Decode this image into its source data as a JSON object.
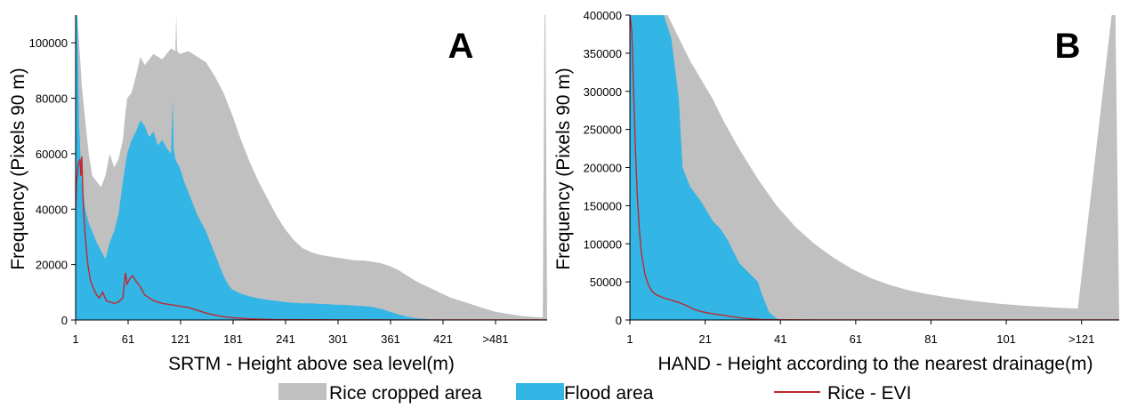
{
  "colors": {
    "rice_cropped": "#c0c0c0",
    "flood": "#33b5e5",
    "rice_evi": "#c0282d",
    "axis": "#000000"
  },
  "legend": [
    {
      "label": "Rice cropped area",
      "type": "patch",
      "color": "#c0c0c0"
    },
    {
      "label": "Flood area",
      "type": "patch",
      "color": "#33b5e5"
    },
    {
      "label": "Rice - EVI",
      "type": "line",
      "color": "#c0282d"
    }
  ],
  "chart_data": [
    {
      "panel": "A",
      "type": "area",
      "xlabel": "SRTM - Height above sea level(m)",
      "ylabel": "Frequency (Pixels 90 m)",
      "xlim": [
        1,
        540
      ],
      "ylim": [
        0,
        110000
      ],
      "xticks": [
        1,
        61,
        121,
        181,
        241,
        301,
        361,
        421,
        481
      ],
      "xtick_labels": [
        "1",
        "61",
        "121",
        "181",
        "241",
        "301",
        "361",
        "421",
        ">481"
      ],
      "yticks": [
        0,
        20000,
        40000,
        60000,
        80000,
        100000
      ],
      "ytick_labels": [
        "0",
        "20000",
        "40000",
        "60000",
        "80000",
        "100000"
      ],
      "series": [
        {
          "name": "Rice cropped area",
          "kind": "area",
          "x": [
            1,
            3,
            5,
            8,
            12,
            16,
            20,
            25,
            30,
            35,
            40,
            45,
            50,
            55,
            58,
            60,
            65,
            70,
            75,
            80,
            90,
            100,
            110,
            115,
            116,
            117,
            120,
            130,
            140,
            150,
            160,
            170,
            180,
            190,
            200,
            210,
            220,
            230,
            240,
            250,
            260,
            270,
            280,
            290,
            300,
            310,
            320,
            330,
            340,
            350,
            360,
            370,
            380,
            390,
            400,
            410,
            420,
            430,
            440,
            450,
            460,
            470,
            480,
            490,
            500,
            510,
            520,
            530,
            535,
            537,
            538,
            540
          ],
          "values": [
            110000,
            110000,
            100000,
            85000,
            72000,
            60000,
            52000,
            50000,
            48000,
            52000,
            60000,
            55000,
            58000,
            65000,
            75000,
            80000,
            82000,
            88000,
            95000,
            92000,
            96000,
            94000,
            98000,
            97000,
            110000,
            97000,
            96000,
            97000,
            95000,
            93000,
            88000,
            82000,
            74000,
            65000,
            57000,
            50000,
            44000,
            38000,
            33000,
            29000,
            26000,
            24500,
            23500,
            23000,
            22500,
            22000,
            21500,
            21500,
            21000,
            20500,
            19500,
            18000,
            16000,
            14000,
            12500,
            11000,
            9500,
            8000,
            7000,
            6000,
            5000,
            4000,
            3000,
            2500,
            2000,
            1500,
            1200,
            1000,
            900,
            110000,
            110000,
            0
          ]
        },
        {
          "name": "Flood area",
          "kind": "area",
          "x": [
            1,
            3,
            5,
            8,
            12,
            16,
            20,
            25,
            30,
            35,
            40,
            45,
            50,
            55,
            60,
            65,
            70,
            75,
            80,
            85,
            90,
            95,
            100,
            105,
            110,
            112,
            113,
            115,
            120,
            125,
            130,
            135,
            140,
            145,
            150,
            155,
            160,
            165,
            170,
            175,
            180,
            190,
            200,
            210,
            220,
            230,
            240,
            250,
            260,
            270,
            280,
            290,
            300,
            310,
            320,
            330,
            340,
            350,
            360,
            370,
            380,
            390,
            400,
            410,
            420,
            430,
            440,
            450,
            460,
            470,
            480,
            490,
            500,
            510,
            520,
            530,
            540
          ],
          "values": [
            110000,
            110000,
            70000,
            50000,
            40000,
            35000,
            32000,
            28000,
            25000,
            22000,
            28000,
            32000,
            38000,
            50000,
            60000,
            65000,
            68000,
            72000,
            70000,
            66000,
            68000,
            63000,
            65000,
            62000,
            60000,
            80000,
            62000,
            58000,
            55000,
            50000,
            46000,
            42000,
            38000,
            35000,
            32000,
            28000,
            24000,
            20000,
            16000,
            13000,
            11000,
            9500,
            8500,
            7800,
            7300,
            6900,
            6500,
            6200,
            6000,
            6000,
            5800,
            5700,
            5500,
            5400,
            5200,
            5000,
            4700,
            4000,
            3000,
            2000,
            1200,
            700,
            400,
            200,
            100,
            50,
            0,
            0,
            0,
            0,
            0,
            0,
            0,
            0,
            0,
            0,
            0
          ]
        },
        {
          "name": "Rice - EVI",
          "kind": "line",
          "x": [
            1,
            2,
            4,
            6,
            7,
            8,
            10,
            12,
            15,
            18,
            22,
            25,
            28,
            32,
            36,
            40,
            45,
            50,
            55,
            58,
            60,
            63,
            66,
            70,
            75,
            80,
            90,
            100,
            110,
            120,
            130,
            140,
            150,
            160,
            170,
            180,
            190,
            200,
            210,
            220,
            230,
            240,
            260,
            280,
            300,
            320,
            340,
            360,
            380,
            400,
            450,
            500,
            540
          ],
          "values": [
            40000,
            50000,
            56000,
            58000,
            52000,
            59000,
            40000,
            30000,
            20000,
            14000,
            11000,
            9000,
            8000,
            10000,
            7000,
            6500,
            6000,
            6500,
            8000,
            17000,
            13000,
            15000,
            16000,
            14000,
            12000,
            9000,
            7000,
            6000,
            5500,
            5000,
            4500,
            3500,
            2500,
            1800,
            1200,
            800,
            600,
            400,
            300,
            200,
            150,
            120,
            100,
            80,
            60,
            50,
            40,
            30,
            20,
            10,
            0,
            0,
            0
          ]
        }
      ]
    },
    {
      "panel": "B",
      "type": "area",
      "xlabel": "HAND - Height according to the nearest drainage(m)",
      "ylabel": "Frequency (Pixels 90 m)",
      "xlim": [
        1,
        131
      ],
      "ylim": [
        0,
        400000
      ],
      "xticks": [
        1,
        21,
        41,
        61,
        81,
        101,
        121
      ],
      "xtick_labels": [
        "1",
        "21",
        "41",
        "61",
        "81",
        "101",
        ">121"
      ],
      "yticks": [
        0,
        50000,
        100000,
        150000,
        200000,
        250000,
        300000,
        350000,
        400000
      ],
      "ytick_labels": [
        "0",
        "50000",
        "100000",
        "150000",
        "200000",
        "250000",
        "300000",
        "350000",
        "400000"
      ],
      "series": [
        {
          "name": "Rice cropped area",
          "kind": "area",
          "x": [
            1,
            5,
            10,
            11,
            13,
            15,
            17,
            20,
            23,
            26,
            30,
            35,
            40,
            45,
            50,
            55,
            60,
            65,
            70,
            75,
            80,
            85,
            90,
            95,
            100,
            105,
            110,
            115,
            120,
            129,
            130,
            131
          ],
          "values": [
            400000,
            400000,
            400000,
            400000,
            380000,
            360000,
            340000,
            315000,
            290000,
            260000,
            225000,
            185000,
            150000,
            122000,
            100000,
            82000,
            67000,
            55000,
            46000,
            39000,
            34000,
            30000,
            26500,
            23500,
            21000,
            19000,
            17500,
            16000,
            15000,
            400000,
            400000,
            0
          ]
        },
        {
          "name": "Flood area",
          "kind": "area",
          "x": [
            1,
            5,
            10,
            12,
            13,
            14,
            15,
            17,
            20,
            23,
            25,
            27,
            30,
            33,
            35,
            36,
            38,
            40,
            42,
            131
          ],
          "values": [
            400000,
            400000,
            400000,
            370000,
            330000,
            290000,
            200000,
            175000,
            155000,
            130000,
            120000,
            105000,
            75000,
            60000,
            50000,
            35000,
            10000,
            2000,
            0,
            0
          ]
        },
        {
          "name": "Rice - EVI",
          "kind": "line",
          "x": [
            1,
            1.5,
            2,
            2.5,
            3,
            3.5,
            4,
            5,
            6,
            7,
            8,
            10,
            12,
            14,
            16,
            18,
            20,
            22,
            24,
            26,
            28,
            30,
            32,
            34,
            36,
            40,
            50,
            60,
            80,
            100,
            120,
            131
          ],
          "values": [
            400000,
            380000,
            300000,
            220000,
            160000,
            120000,
            90000,
            60000,
            45000,
            37000,
            33000,
            29000,
            26000,
            23000,
            19000,
            14000,
            11000,
            9000,
            7500,
            6000,
            4500,
            3000,
            2000,
            1200,
            700,
            300,
            100,
            50,
            20,
            10,
            0,
            0
          ]
        }
      ]
    }
  ]
}
